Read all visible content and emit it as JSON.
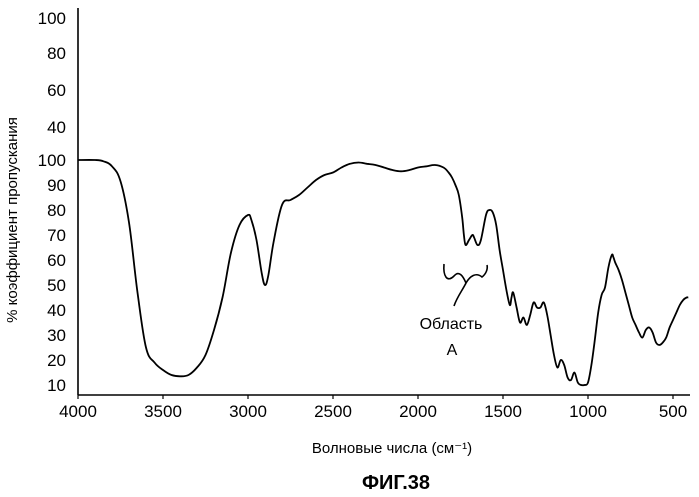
{
  "chart_data": {
    "type": "line",
    "title": "",
    "xlabel": "Волновые числа (см⁻¹)",
    "ylabel": "% коэффициент пропускания",
    "caption": "ФИГ.38",
    "x_ticks": [
      "4000",
      "3500",
      "3000",
      "2500",
      "2000",
      "1500",
      "1000",
      "500"
    ],
    "y_ticks_upper": [
      "100",
      "80",
      "60",
      "40"
    ],
    "y_ticks_lower": [
      "100",
      "90",
      "80",
      "70",
      "60",
      "50",
      "40",
      "30",
      "20",
      "10"
    ],
    "xlim": [
      4000,
      400
    ],
    "ylim": [
      10,
      100
    ],
    "annotation": {
      "line1": "Область",
      "line2": "A"
    },
    "series": [
      {
        "color": "#000000",
        "x": [
          4000,
          3900,
          3850,
          3800,
          3750,
          3700,
          3650,
          3600,
          3550,
          3500,
          3450,
          3400,
          3350,
          3300,
          3250,
          3200,
          3150,
          3100,
          3050,
          3000,
          2980,
          2950,
          2920,
          2900,
          2880,
          2850,
          2800,
          2750,
          2700,
          2650,
          2600,
          2550,
          2500,
          2450,
          2400,
          2350,
          2300,
          2250,
          2200,
          2150,
          2100,
          2050,
          2000,
          1950,
          1900,
          1850,
          1820,
          1800,
          1780,
          1760,
          1740,
          1730,
          1720,
          1700,
          1680,
          1670,
          1650,
          1630,
          1600,
          1580,
          1560,
          1540,
          1520,
          1500,
          1480,
          1460,
          1450,
          1440,
          1420,
          1400,
          1380,
          1360,
          1340,
          1320,
          1300,
          1280,
          1260,
          1240,
          1220,
          1200,
          1180,
          1160,
          1140,
          1120,
          1100,
          1080,
          1060,
          1040,
          1020,
          1000,
          980,
          960,
          940,
          920,
          900,
          880,
          860,
          850,
          840,
          820,
          800,
          780,
          760,
          740,
          720,
          700,
          680,
          660,
          640,
          620,
          600,
          580,
          560,
          540,
          520,
          500,
          480,
          460,
          440,
          420,
          410
        ],
        "y": [
          100,
          100,
          99.5,
          97.5,
          91.5,
          75,
          47,
          25,
          19,
          16,
          14,
          13.5,
          14,
          17,
          22,
          32,
          45,
          63,
          74,
          78,
          76,
          68,
          55,
          50,
          54,
          67,
          82,
          84,
          86,
          89,
          92,
          94,
          95,
          97,
          98.5,
          99,
          98.5,
          98,
          97,
          96,
          95.5,
          96,
          97,
          97.5,
          98,
          97,
          95,
          93,
          90,
          86,
          77,
          70,
          66,
          68,
          70,
          69,
          66,
          68,
          78,
          80,
          79,
          74,
          64,
          56,
          48,
          42,
          45,
          47,
          41,
          35,
          37,
          34,
          38,
          43,
          41,
          41,
          43,
          38,
          30,
          22,
          17,
          20,
          18,
          13,
          12,
          15,
          11,
          10,
          10,
          11,
          18,
          28,
          39,
          46,
          49,
          57,
          62,
          61,
          59,
          56,
          52,
          47,
          42,
          37,
          34,
          31,
          29,
          32,
          33,
          31,
          27,
          26,
          27,
          29,
          33,
          36,
          39,
          42,
          44,
          45,
          45
        ]
      }
    ]
  }
}
